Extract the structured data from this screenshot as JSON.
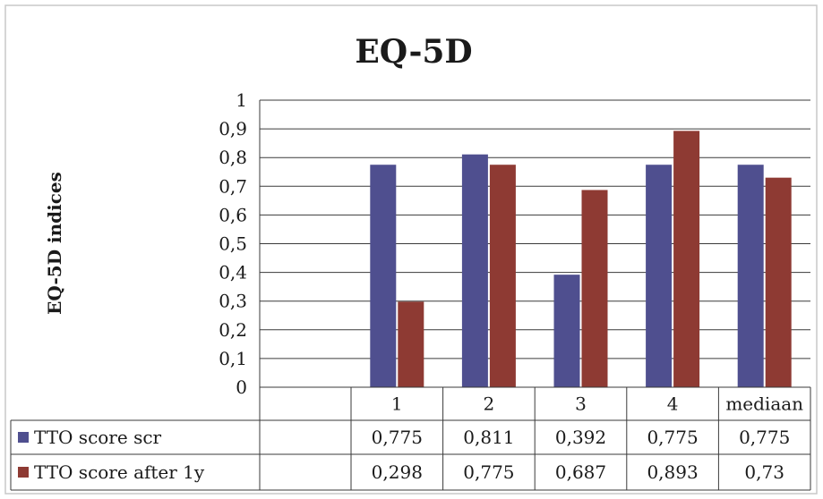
{
  "chart_data": {
    "type": "bar",
    "title": "EQ-5D",
    "ylabel": "EQ-5D indices",
    "xlabel": "",
    "ylim": [
      0,
      1
    ],
    "yticks": [
      "0",
      "0,1",
      "0,2",
      "0,3",
      "0,4",
      "0,5",
      "0,6",
      "0,7",
      "0,8",
      "0,9",
      "1"
    ],
    "categories": [
      "1",
      "2",
      "3",
      "4",
      "mediaan"
    ],
    "grid": true,
    "legend_placement": "data-table-left",
    "series": [
      {
        "name": "TTO score scr",
        "color": "#4f4f8f",
        "values": [
          0.775,
          0.811,
          0.392,
          0.775,
          0.775
        ],
        "labels": [
          "0,775",
          "0,811",
          "0,392",
          "0,775",
          "0,775"
        ]
      },
      {
        "name": "TTO score after 1y",
        "color": "#8e3a33",
        "values": [
          0.298,
          0.775,
          0.687,
          0.893,
          0.73
        ],
        "labels": [
          "0,298",
          "0,775",
          "0,687",
          "0,893",
          "0,73"
        ]
      }
    ]
  }
}
